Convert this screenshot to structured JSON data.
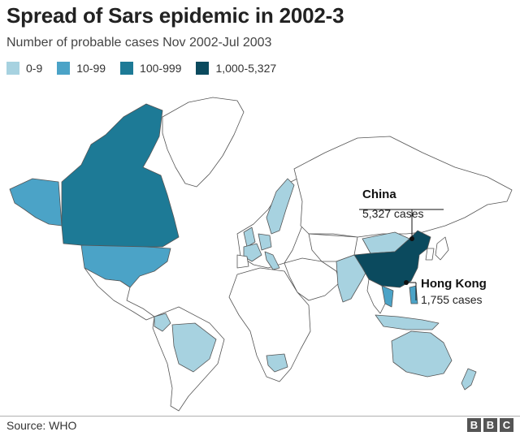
{
  "title": "Spread of Sars epidemic in 2002-3",
  "subtitle": "Number of probable cases Nov 2002-Jul 2003",
  "legend": [
    {
      "label": "0-9",
      "color": "#a7d2e0"
    },
    {
      "label": "10-99",
      "color": "#4ba3c7"
    },
    {
      "label": "100-999",
      "color": "#1d7a96"
    },
    {
      "label": "1,000-5,327",
      "color": "#0b4a5e"
    }
  ],
  "annotations": {
    "china": {
      "name": "China",
      "cases": "5,327 cases"
    },
    "hong_kong": {
      "name": "Hong Kong",
      "cases": "1,755 cases"
    }
  },
  "source": "Source: WHO",
  "logo": [
    "B",
    "B",
    "C"
  ]
}
